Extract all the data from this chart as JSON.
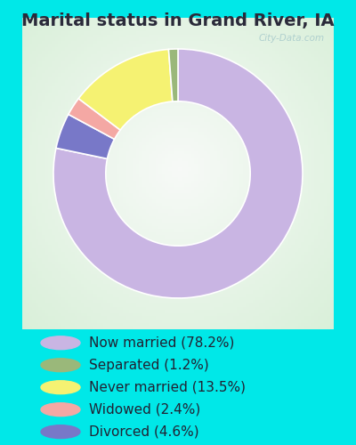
{
  "title": "Marital status in Grand River, IA",
  "categories": [
    "Now married",
    "Separated",
    "Never married",
    "Widowed",
    "Divorced"
  ],
  "values": [
    78.2,
    1.2,
    13.5,
    2.4,
    4.6
  ],
  "colors_pie": [
    "#c9b5e3",
    "#9ab87a",
    "#f5f272",
    "#f4a8a4",
    "#7878c8"
  ],
  "legend_labels": [
    "Now married (78.2%)",
    "Separated (1.2%)",
    "Never married (13.5%)",
    "Widowed (2.4%)",
    "Divorced (4.6%)"
  ],
  "legend_colors": [
    "#c9b5e3",
    "#9ab87a",
    "#f5f272",
    "#f4a8a4",
    "#7878c8"
  ],
  "bg_cyan": "#00e8e8",
  "title_color": "#2a2a3a",
  "title_fontsize": 14,
  "legend_fontsize": 11,
  "watermark": "City-Data.com"
}
